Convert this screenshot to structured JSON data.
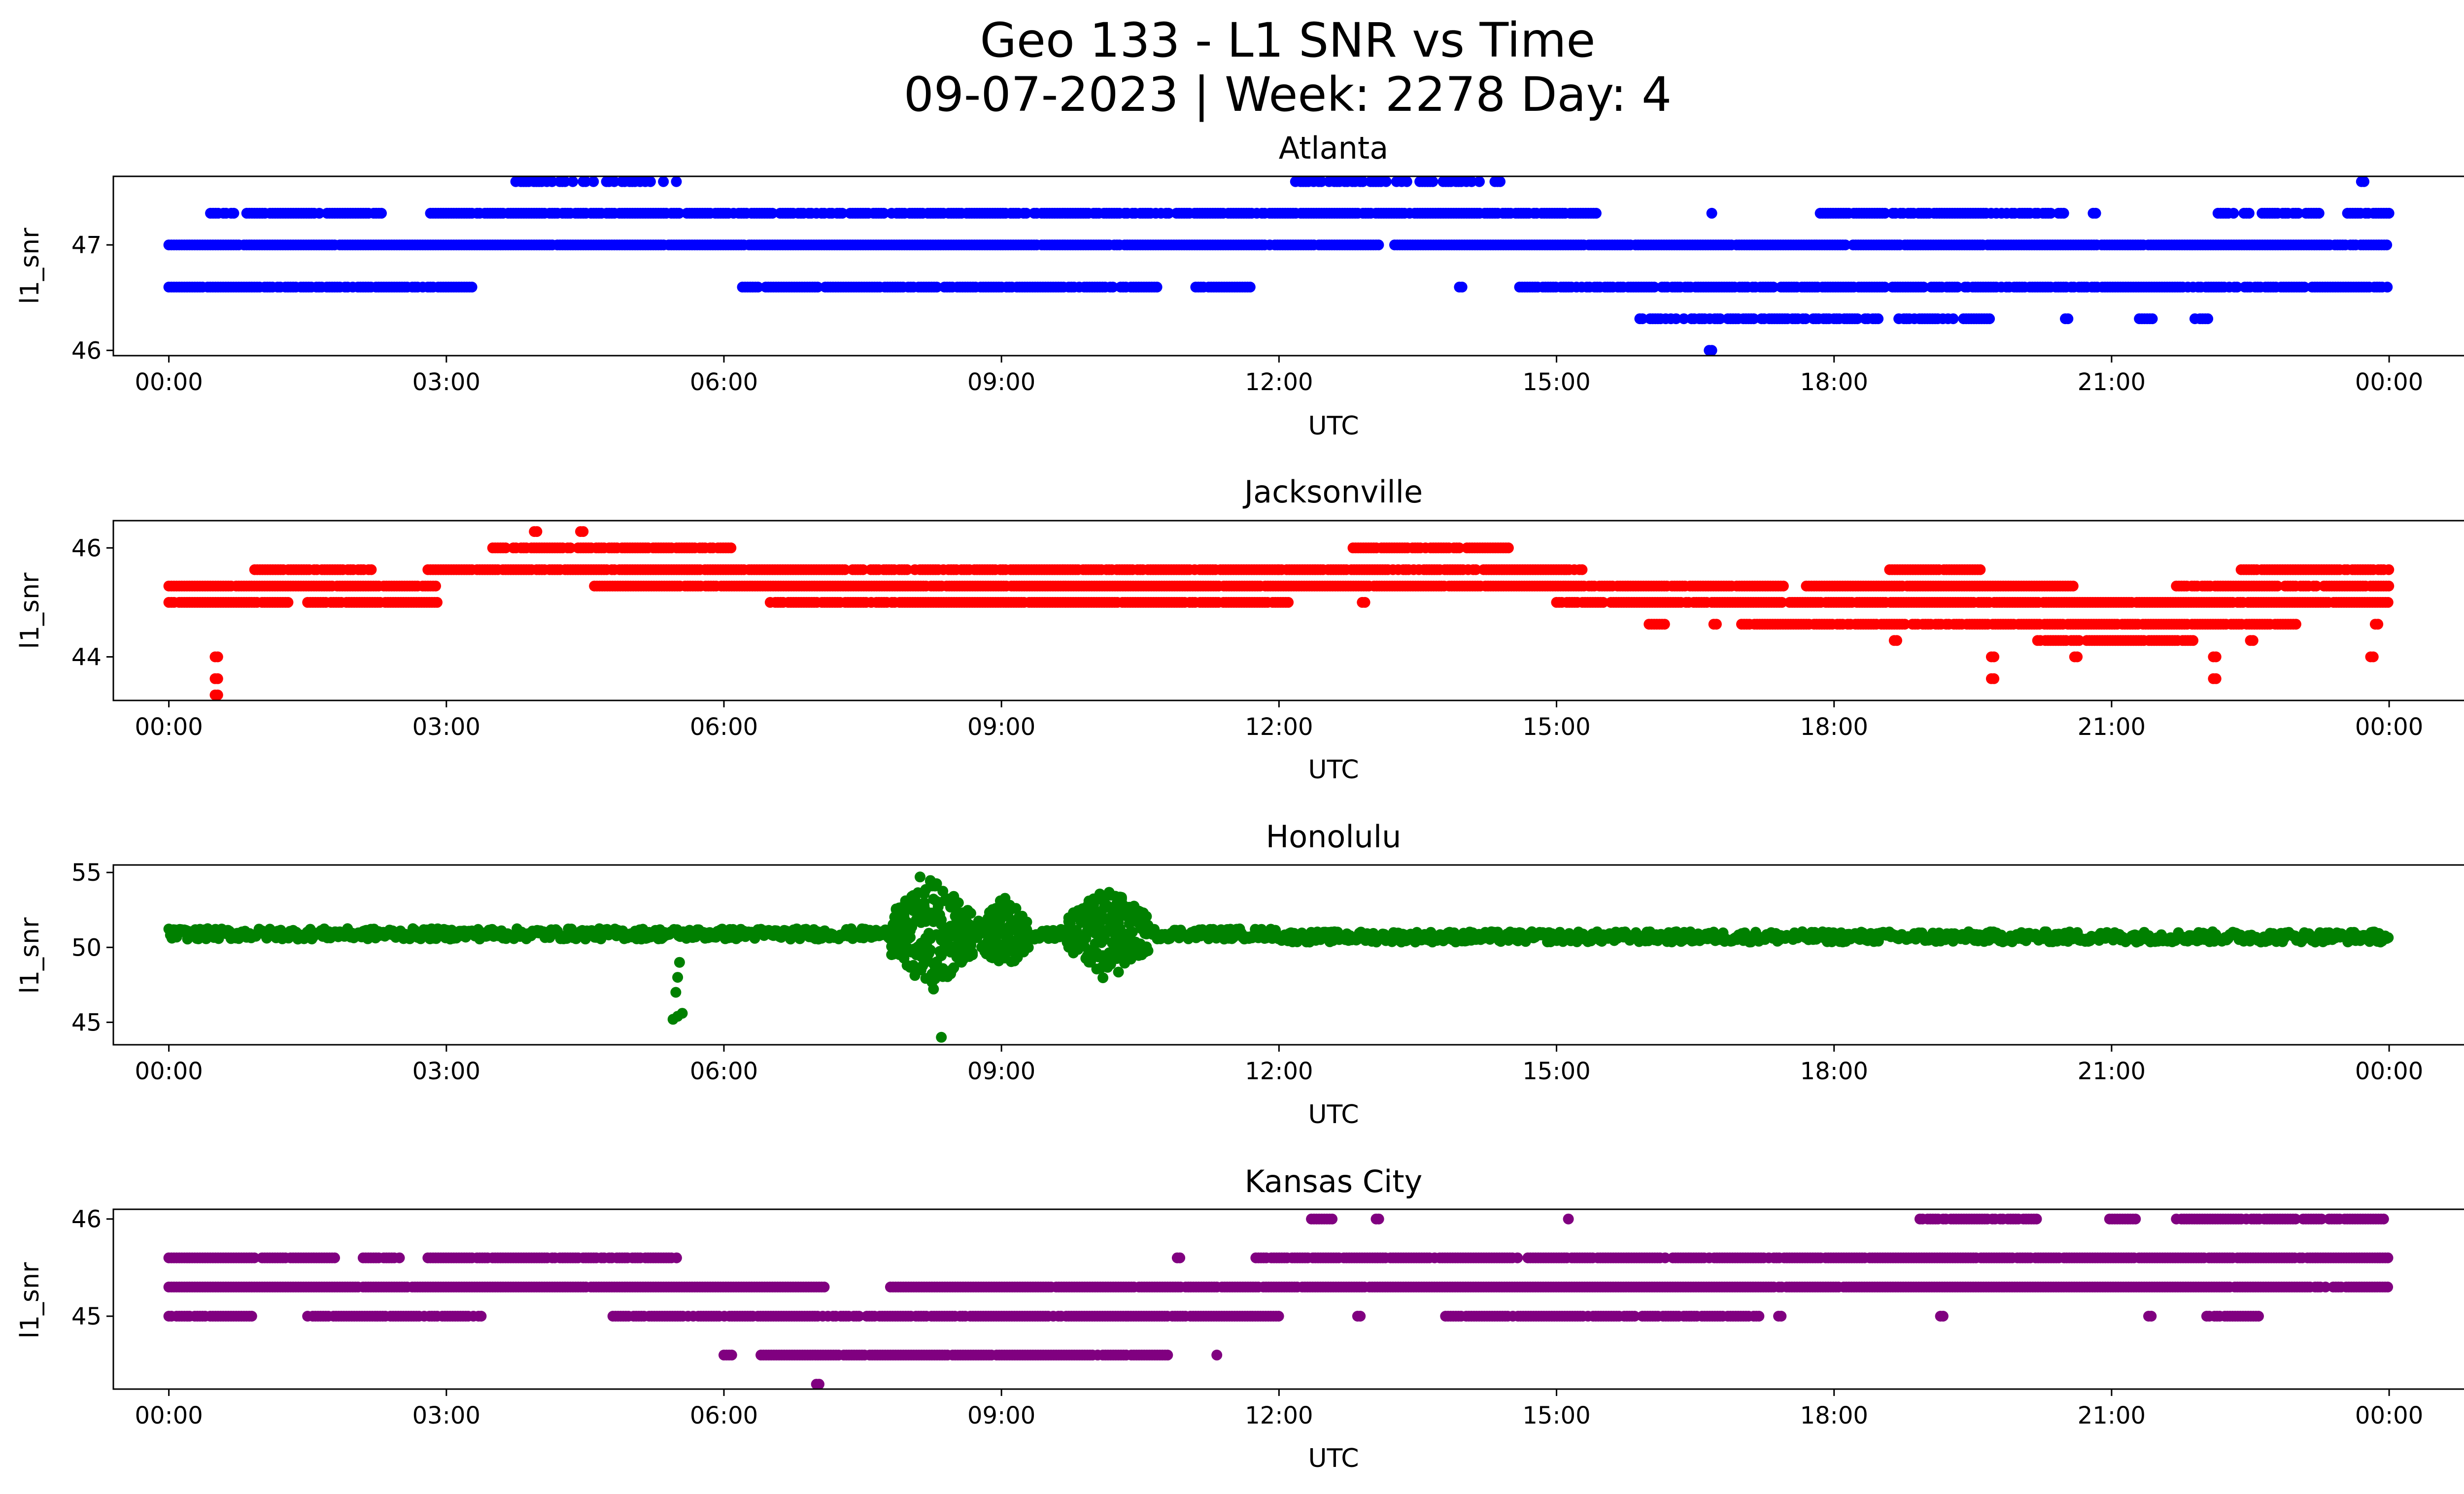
{
  "figure": {
    "title_line1": "Geo 133 - L1 SNR vs Time",
    "title_line2": "09-07-2023 | Week: 2278 Day: 4"
  },
  "chart_data": [
    {
      "type": "scatter",
      "title": "Atlanta",
      "xlabel": "UTC",
      "ylabel": "l1_snr",
      "color": "#0000ff",
      "xlim_hours": [
        -0.6,
        25.8
      ],
      "x_ticks": [
        "00:00",
        "03:00",
        "06:00",
        "09:00",
        "12:00",
        "15:00",
        "18:00",
        "21:00",
        "00:00"
      ],
      "ylim": [
        45.95,
        47.65
      ],
      "y_ticks": [
        46,
        47
      ],
      "grid": false,
      "levels": [
        {
          "y": 47.6,
          "segments": [
            [
              3.75,
              5.6
            ],
            [
              12.15,
              14.4
            ],
            [
              23.7,
              23.75
            ]
          ],
          "gaps": 0.5
        },
        {
          "y": 47.3,
          "segments": [
            [
              0.45,
              2.3
            ],
            [
              2.8,
              15.5
            ],
            [
              16.65,
              16.7
            ],
            [
              17.85,
              20.5
            ],
            [
              20.8,
              20.85
            ],
            [
              22.15,
              23.25
            ],
            [
              23.55,
              24.0
            ]
          ],
          "gaps": 0.15
        },
        {
          "y": 47.0,
          "segments": [
            [
              0.0,
              13.1
            ],
            [
              13.25,
              24.0
            ]
          ],
          "gaps": 0.02
        },
        {
          "y": 46.6,
          "segments": [
            [
              0.0,
              3.3
            ],
            [
              6.2,
              10.7
            ],
            [
              11.1,
              11.7
            ],
            [
              13.95,
              14.0
            ],
            [
              14.6,
              24.0
            ]
          ],
          "gaps": 0.12
        },
        {
          "y": 46.3,
          "segments": [
            [
              15.9,
              18.5
            ],
            [
              18.7,
              19.7
            ],
            [
              20.5,
              20.55
            ],
            [
              21.3,
              21.45
            ],
            [
              21.9,
              22.05
            ]
          ],
          "gaps": 0.3
        },
        {
          "y": 46.0,
          "segments": [
            [
              16.65,
              16.7
            ]
          ],
          "gaps": 0
        }
      ]
    },
    {
      "type": "scatter",
      "title": "Jacksonville",
      "xlabel": "UTC",
      "ylabel": "l1_snr",
      "color": "#ff0000",
      "xlim_hours": [
        -0.6,
        25.8
      ],
      "x_ticks": [
        "00:00",
        "03:00",
        "06:00",
        "09:00",
        "12:00",
        "15:00",
        "18:00",
        "21:00",
        "00:00"
      ],
      "ylim": [
        43.2,
        46.5
      ],
      "y_ticks": [
        44,
        46
      ],
      "grid": false,
      "levels": [
        {
          "y": 46.3,
          "segments": [
            [
              3.95,
              4.0
            ],
            [
              4.45,
              4.5
            ]
          ],
          "gaps": 0
        },
        {
          "y": 46.0,
          "segments": [
            [
              3.5,
              6.1
            ],
            [
              12.8,
              14.5
            ]
          ],
          "gaps": 0.15
        },
        {
          "y": 45.6,
          "segments": [
            [
              0.9,
              2.2
            ],
            [
              2.8,
              12.0
            ],
            [
              12.0,
              15.3
            ],
            [
              18.6,
              19.6
            ],
            [
              22.4,
              24.0
            ]
          ],
          "gaps": 0.1
        },
        {
          "y": 45.3,
          "segments": [
            [
              0.0,
              2.9
            ],
            [
              4.6,
              17.5
            ],
            [
              17.7,
              20.6
            ],
            [
              21.7,
              24.0
            ]
          ],
          "gaps": 0.05
        },
        {
          "y": 45.0,
          "segments": [
            [
              0.0,
              1.3
            ],
            [
              1.5,
              2.9
            ],
            [
              6.5,
              12.1
            ],
            [
              12.9,
              12.95
            ],
            [
              15.0,
              24.0
            ]
          ],
          "gaps": 0.05
        },
        {
          "y": 44.6,
          "segments": [
            [
              16.0,
              16.2
            ],
            [
              16.7,
              16.75
            ],
            [
              17.0,
              23.0
            ],
            [
              23.85,
              23.9
            ]
          ],
          "gaps": 0.08
        },
        {
          "y": 44.3,
          "segments": [
            [
              18.65,
              18.7
            ],
            [
              20.2,
              21.9
            ],
            [
              22.5,
              22.55
            ]
          ],
          "gaps": 0.1
        },
        {
          "y": 44.0,
          "segments": [
            [
              0.5,
              0.55
            ],
            [
              19.7,
              19.75
            ],
            [
              20.6,
              20.65
            ],
            [
              22.1,
              22.15
            ],
            [
              23.8,
              23.85
            ]
          ],
          "gaps": 0
        },
        {
          "y": 43.6,
          "segments": [
            [
              0.5,
              0.55
            ],
            [
              19.7,
              19.75
            ],
            [
              22.1,
              22.15
            ]
          ],
          "gaps": 0
        },
        {
          "y": 43.3,
          "segments": [
            [
              0.5,
              0.55
            ]
          ],
          "gaps": 0
        }
      ]
    },
    {
      "type": "scatter",
      "title": "Honolulu",
      "xlabel": "UTC",
      "ylabel": "l1_snr",
      "color": "#008000",
      "xlim_hours": [
        -0.6,
        25.8
      ],
      "x_ticks": [
        "00:00",
        "03:00",
        "06:00",
        "09:00",
        "12:00",
        "15:00",
        "18:00",
        "21:00",
        "00:00"
      ],
      "ylim": [
        43.5,
        55.5
      ],
      "y_ticks": [
        45,
        50,
        55
      ],
      "grid": false,
      "baseline": 50.8,
      "noise_bursts": [
        {
          "start": 7.8,
          "end": 8.7,
          "amplitude": 3.8
        },
        {
          "start": 8.75,
          "end": 9.3,
          "amplitude": 2.5
        },
        {
          "start": 9.7,
          "end": 10.6,
          "amplitude": 3.2
        }
      ],
      "outliers": [
        {
          "x": 5.45,
          "y": 45.2
        },
        {
          "x": 5.5,
          "y": 45.4
        },
        {
          "x": 5.55,
          "y": 45.6
        },
        {
          "x": 5.48,
          "y": 47.0
        },
        {
          "x": 5.5,
          "y": 48.0
        },
        {
          "x": 5.52,
          "y": 49.0
        },
        {
          "x": 8.35,
          "y": 44.0
        },
        {
          "x": 8.12,
          "y": 54.7
        }
      ]
    },
    {
      "type": "scatter",
      "title": "Kansas City",
      "xlabel": "UTC",
      "ylabel": "l1_snr",
      "color": "#800080",
      "xlim_hours": [
        -0.6,
        25.8
      ],
      "x_ticks": [
        "00:00",
        "03:00",
        "06:00",
        "09:00",
        "12:00",
        "15:00",
        "18:00",
        "21:00",
        "00:00"
      ],
      "ylim": [
        44.25,
        46.1
      ],
      "y_ticks": [
        45,
        46
      ],
      "grid": false,
      "levels": [
        {
          "y": 46.0,
          "segments": [
            [
              12.35,
              12.6
            ],
            [
              13.05,
              13.1
            ],
            [
              15.1,
              15.15
            ],
            [
              18.9,
              20.2
            ],
            [
              20.95,
              21.3
            ],
            [
              21.7,
              24.0
            ]
          ],
          "gaps": 0.12
        },
        {
          "y": 45.6,
          "segments": [
            [
              0.0,
              1.8
            ],
            [
              2.1,
              2.5
            ],
            [
              2.8,
              5.5
            ],
            [
              10.9,
              10.95
            ],
            [
              11.75,
              24.0
            ]
          ],
          "gaps": 0.1
        },
        {
          "y": 45.3,
          "segments": [
            [
              0.0,
              7.1
            ],
            [
              7.8,
              24.0
            ]
          ],
          "gaps": 0.02
        },
        {
          "y": 45.0,
          "segments": [
            [
              0.0,
              0.9
            ],
            [
              1.5,
              3.4
            ],
            [
              4.8,
              12.0
            ],
            [
              12.85,
              12.9
            ],
            [
              13.8,
              17.2
            ],
            [
              17.4,
              17.45
            ],
            [
              19.15,
              19.2
            ],
            [
              21.4,
              21.45
            ],
            [
              22.0,
              22.6
            ]
          ],
          "gaps": 0.1
        },
        {
          "y": 44.6,
          "segments": [
            [
              6.0,
              6.1
            ],
            [
              6.4,
              10.8
            ],
            [
              11.3,
              11.35
            ]
          ],
          "gaps": 0.05
        },
        {
          "y": 44.3,
          "segments": [
            [
              7.0,
              7.05
            ]
          ],
          "gaps": 0
        }
      ]
    }
  ]
}
